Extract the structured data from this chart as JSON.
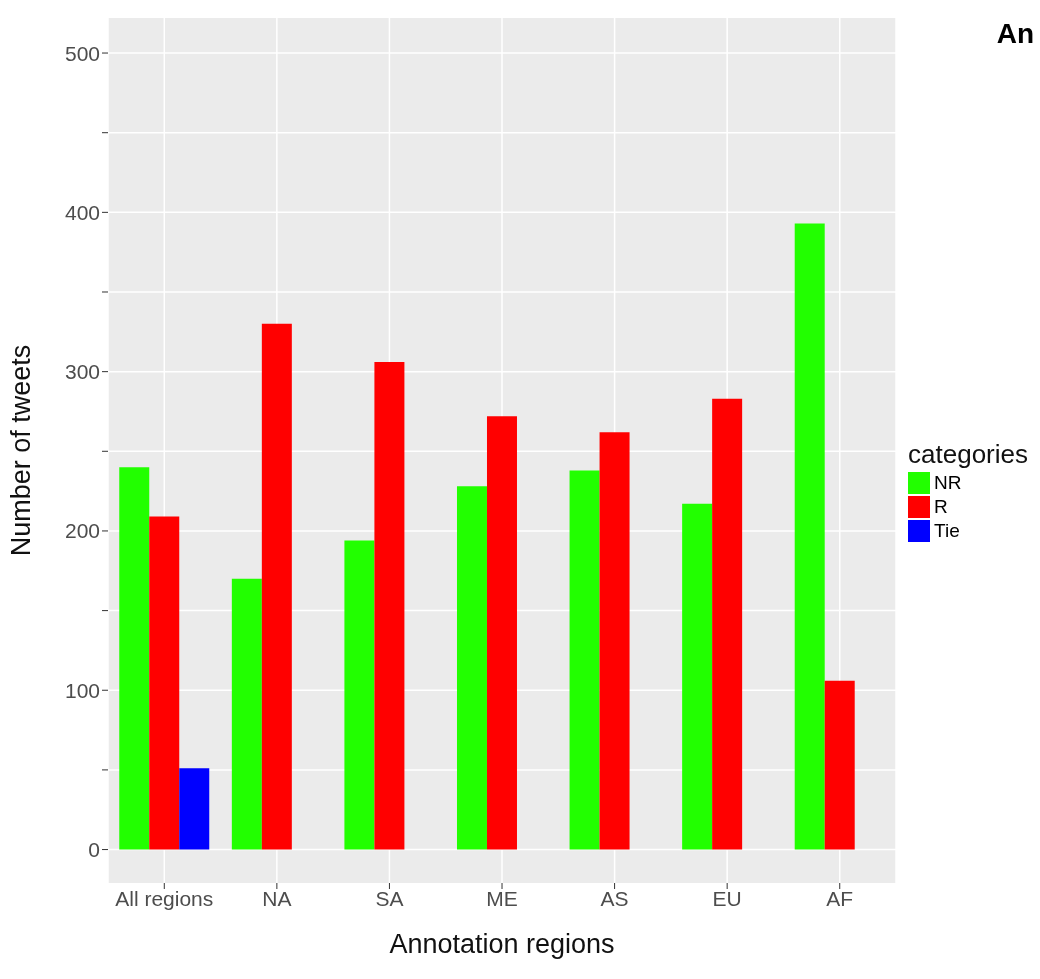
{
  "chart_data": {
    "type": "bar",
    "xlabel": "Annotation regions",
    "ylabel": "Number of tweets",
    "legend_title": "categories",
    "annotations": [
      "An"
    ],
    "categories": [
      "All regions",
      "NA",
      "SA",
      "ME",
      "AS",
      "EU",
      "AF"
    ],
    "series": [
      {
        "name": "NR",
        "color": "#22ff00",
        "values": [
          240,
          170,
          194,
          228,
          238,
          217,
          393
        ]
      },
      {
        "name": "R",
        "color": "#ff0000",
        "values": [
          209,
          330,
          306,
          272,
          262,
          283,
          106
        ]
      },
      {
        "name": "Tie",
        "color": "#0000ff",
        "values": [
          51,
          null,
          null,
          null,
          null,
          null,
          null
        ]
      }
    ],
    "ylim": [
      -21,
      522
    ],
    "yticks": [
      0,
      {
        "value": 50,
        "label": null
      },
      100,
      {
        "value": 150,
        "label": null
      },
      200,
      {
        "value": 250,
        "label": null
      },
      300,
      {
        "value": 350,
        "label": null
      },
      400,
      {
        "value": 450,
        "label": null
      },
      500
    ],
    "grid": true,
    "legend": "right"
  }
}
